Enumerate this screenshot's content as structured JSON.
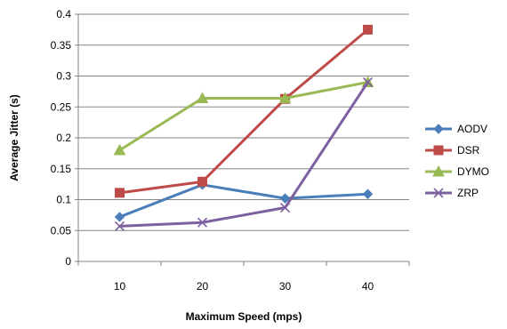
{
  "chart_data": {
    "type": "line",
    "title": "",
    "xlabel": "Maximum Speed (mps)",
    "ylabel": "Average Jitter (s)",
    "categories": [
      "10",
      "20",
      "30",
      "40"
    ],
    "ylim": [
      0,
      0.4
    ],
    "yticks": [
      "0",
      "0.05",
      "0.1",
      "0.15",
      "0.2",
      "0.25",
      "0.3",
      "0.35",
      "0.4"
    ],
    "grid": true,
    "legend_position": "right",
    "series": [
      {
        "name": "AODV",
        "values": [
          0.072,
          0.124,
          0.102,
          0.109
        ],
        "color": "#4a7ebb",
        "marker": "diamond"
      },
      {
        "name": "DSR",
        "values": [
          0.111,
          0.129,
          0.263,
          0.375
        ],
        "color": "#be4b48",
        "marker": "square"
      },
      {
        "name": "DYMO",
        "values": [
          0.18,
          0.264,
          0.264,
          0.29
        ],
        "color": "#98b954",
        "marker": "triangle"
      },
      {
        "name": "ZRP",
        "values": [
          0.057,
          0.063,
          0.087,
          0.29
        ],
        "color": "#7d60a0",
        "marker": "x"
      }
    ]
  }
}
